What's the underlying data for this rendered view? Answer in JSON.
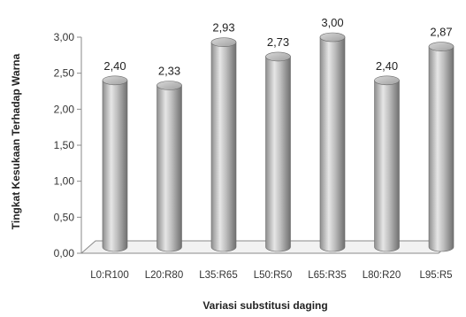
{
  "chart_data": {
    "type": "bar",
    "style": "3d-cylinder",
    "title": "",
    "xlabel": "Variasi substitusi daging",
    "ylabel": "Tingkat Kesukaan Terhadap Warna",
    "categories": [
      "L0:R100",
      "L20:R80",
      "L35:R65",
      "L50:R50",
      "L65:R35",
      "L80:R20",
      "L95:R5"
    ],
    "values": [
      2.4,
      2.33,
      2.93,
      2.73,
      3.0,
      2.4,
      2.87
    ],
    "value_labels": [
      "2,40",
      "2,33",
      "2,93",
      "2,73",
      "3,00",
      "2,40",
      "2,87"
    ],
    "ylim": [
      0,
      3
    ],
    "yticks": [
      0,
      0.5,
      1,
      1.5,
      2,
      2.5,
      3
    ],
    "ytick_labels": [
      "0,00",
      "0,50",
      "1,00",
      "1,50",
      "2,00",
      "2,50",
      "3,00"
    ],
    "grid": false,
    "legend": "none",
    "bar_color": "#a9a9a9"
  }
}
